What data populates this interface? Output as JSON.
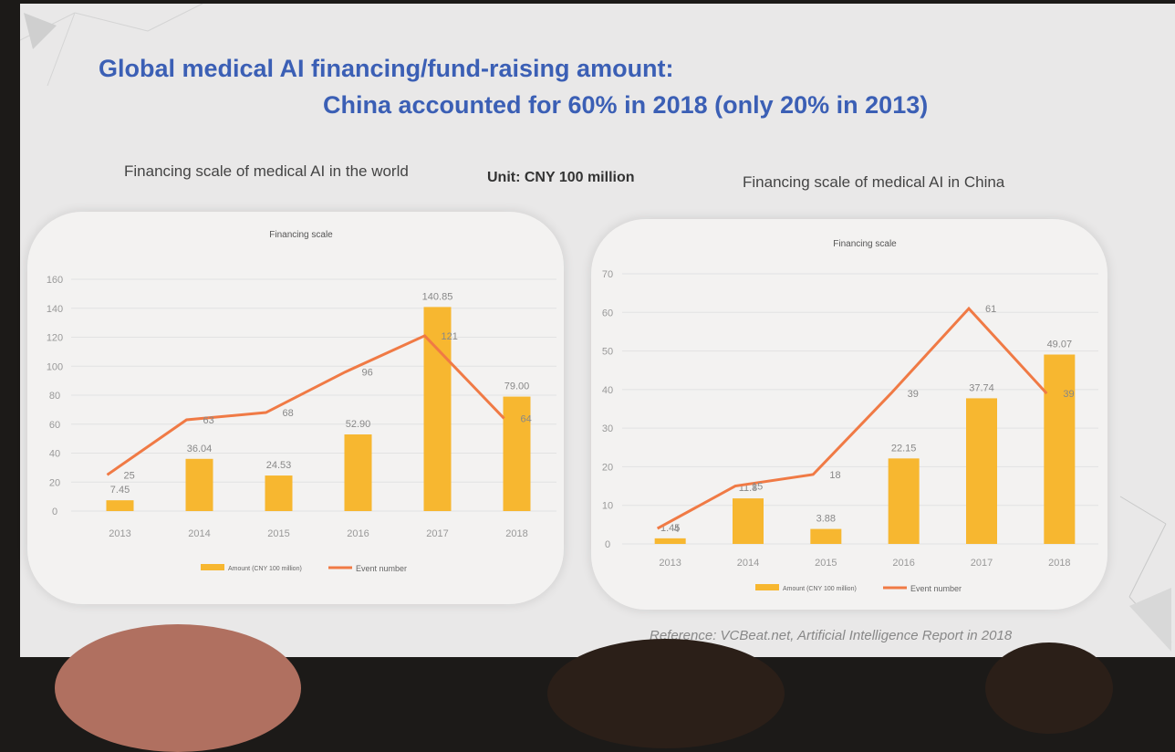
{
  "title_line1": "Global medical AI financing/fund-raising amount:",
  "title_line2": "China accounted for 60% in 2018 (only 20% in 2013)",
  "left_subtitle": "Financing scale of medical AI in the world",
  "unit_label": "Unit: CNY 100 million",
  "right_subtitle": "Financing scale of medical AI in China",
  "reference": "Reference: VCBeat.net, Artificial Intelligence Report in 2018",
  "colors": {
    "bar": "#f7b730",
    "line": "#f07a45",
    "title": "#3b5fb5"
  },
  "chart_data": [
    {
      "type": "bar",
      "title": "Financing scale",
      "categories": [
        "2013",
        "2014",
        "2015",
        "2016",
        "2017",
        "2018"
      ],
      "series": [
        {
          "name": "Amount (CNY 100 million)",
          "type": "bar",
          "values": [
            7.45,
            36.04,
            24.53,
            52.9,
            140.85,
            79.0
          ],
          "labels": [
            "7.45",
            "36.04",
            "24.53",
            "52.90",
            "140.85",
            "79.00"
          ]
        },
        {
          "name": "Event number",
          "type": "line",
          "values": [
            25,
            63,
            68,
            96,
            121,
            64
          ],
          "labels": [
            "25",
            "63",
            "68",
            "96",
            "121",
            "64"
          ]
        }
      ],
      "ylim": [
        0,
        160
      ],
      "yticks": [
        0,
        20,
        40,
        60,
        80,
        100,
        120,
        140,
        160
      ],
      "grid": true,
      "legend": "bottom"
    },
    {
      "type": "bar",
      "title": "Financing scale",
      "categories": [
        "2013",
        "2014",
        "2015",
        "2016",
        "2017",
        "2018"
      ],
      "series": [
        {
          "name": "Amount (CNY 100 million)",
          "type": "bar",
          "values": [
            1.45,
            11.8,
            3.88,
            22.15,
            37.74,
            49.07
          ],
          "labels": [
            "1.45",
            "11.8",
            "3.88",
            "22.15",
            "37.74",
            "49.07"
          ]
        },
        {
          "name": "Event number",
          "type": "line",
          "values": [
            4,
            15,
            18,
            39,
            61,
            39
          ],
          "labels": [
            "4",
            "15",
            "18",
            "39",
            "61",
            "39"
          ]
        }
      ],
      "ylim": [
        0,
        70
      ],
      "yticks": [
        0,
        10,
        20,
        30,
        40,
        50,
        60,
        70
      ],
      "grid": true,
      "legend": "bottom"
    }
  ]
}
